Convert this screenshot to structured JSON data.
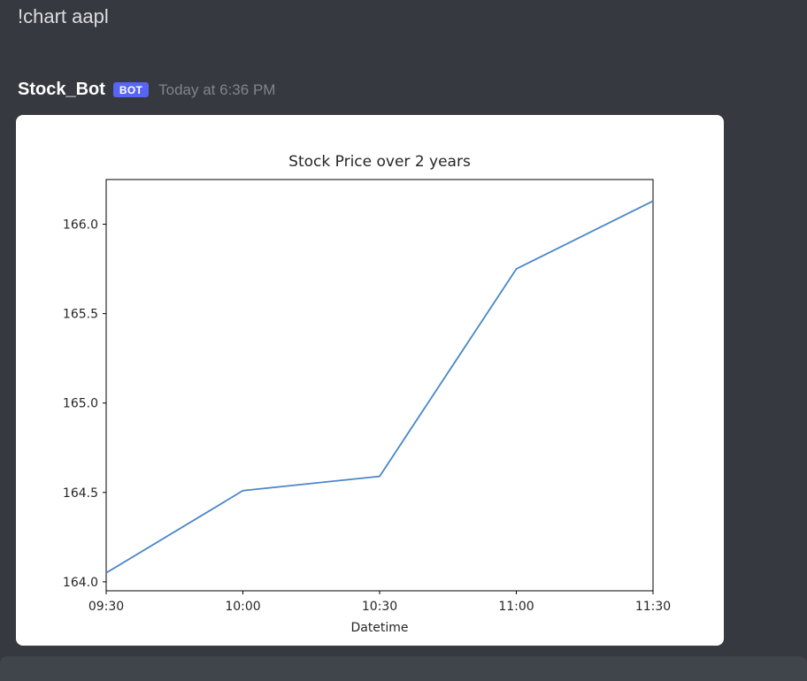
{
  "command_message": {
    "text": "!chart aapl"
  },
  "bot_message": {
    "username": "Stock_Bot",
    "bot_badge": "BOT",
    "timestamp": "Today at 6:36 PM"
  },
  "colors": {
    "background": "#36393f",
    "input_bar": "#40444b",
    "bot_badge": "#5865f2",
    "chart_line": "#4a86c8"
  },
  "chart_data": {
    "type": "line",
    "title": "Stock Price over 2 years",
    "xlabel": "Datetime",
    "ylabel": "",
    "x": [
      "09:30",
      "10:00",
      "10:30",
      "11:00",
      "11:30"
    ],
    "values": [
      164.05,
      164.51,
      164.59,
      165.75,
      166.13
    ],
    "yticks": [
      164.0,
      164.5,
      165.0,
      165.5,
      166.0
    ],
    "ylim": [
      163.95,
      166.25
    ],
    "line_color": "#4a86c8",
    "grid": false,
    "legend": "none"
  }
}
